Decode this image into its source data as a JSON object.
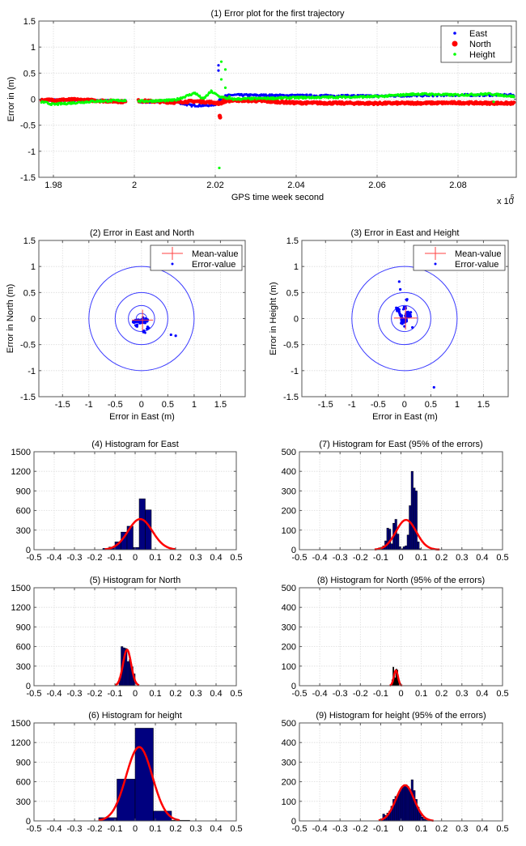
{
  "chart_data": [
    {
      "id": "p1",
      "type": "scatter",
      "title": "(1) Error plot for the first trajectory",
      "xlabel": "GPS time week second",
      "ylabel": "Error in (m)",
      "x_multiplier_label": "x 10",
      "x_multiplier_exp": "5",
      "xlim": [
        1.9764,
        2.0944
      ],
      "ylim": [
        -1.5,
        1.5
      ],
      "xticks": [
        1.98,
        2,
        2.02,
        2.04,
        2.06,
        2.08
      ],
      "xtick_labels": [
        "1.98",
        "2",
        "2.02",
        "2.04",
        "2.06",
        "2.08"
      ],
      "yticks": [
        -1.5,
        -1,
        -0.5,
        0,
        0.5,
        1,
        1.5
      ],
      "ytick_labels": [
        "-1.5",
        "-1",
        "-0.5",
        "0",
        "0.5",
        "1",
        "1.5"
      ],
      "grid": true,
      "legend_position": "top-right",
      "series": [
        {
          "name": "East",
          "color": "#0000ff",
          "marker": "dot",
          "segments": [
            [
              1.977,
              -0.02
            ],
            [
              1.985,
              -0.02
            ],
            [
              1.998,
              -0.04
            ],
            [
              2.001,
              -0.05
            ],
            [
              2.01,
              -0.05
            ],
            [
              2.014,
              -0.12
            ],
            [
              2.018,
              -0.12
            ],
            [
              2.02,
              -0.1
            ],
            [
              2.022,
              0.05
            ],
            [
              2.024,
              0.08
            ],
            [
              2.04,
              0.07
            ],
            [
              2.06,
              0.06
            ],
            [
              2.08,
              0.08
            ],
            [
              2.094,
              0.08
            ]
          ],
          "outliers": [
            [
              2.0208,
              0.65
            ],
            [
              2.0208,
              0.55
            ]
          ]
        },
        {
          "name": "North",
          "color": "#ff0000",
          "marker": "circle",
          "segments": [
            [
              1.977,
              -0.02
            ],
            [
              1.985,
              -0.01
            ],
            [
              1.998,
              -0.05
            ],
            [
              2.001,
              -0.03
            ],
            [
              2.01,
              -0.06
            ],
            [
              2.015,
              -0.04
            ],
            [
              2.019,
              -0.06
            ],
            [
              2.021,
              -0.08
            ],
            [
              2.024,
              -0.02
            ],
            [
              2.03,
              -0.03
            ],
            [
              2.04,
              -0.07
            ],
            [
              2.06,
              -0.08
            ],
            [
              2.08,
              -0.07
            ],
            [
              2.094,
              -0.08
            ]
          ],
          "outliers": [
            [
              2.0211,
              -0.32
            ],
            [
              2.0212,
              -0.35
            ],
            [
              2.0222,
              -0.01
            ],
            [
              2.0225,
              0.02
            ]
          ]
        },
        {
          "name": "Height",
          "color": "#00ff00",
          "marker": "dot",
          "segments": [
            [
              1.977,
              -0.05
            ],
            [
              1.98,
              -0.1
            ],
            [
              1.99,
              -0.04
            ],
            [
              1.998,
              -0.02
            ],
            [
              2.001,
              -0.04
            ],
            [
              2.01,
              -0.02
            ],
            [
              2.015,
              0.12
            ],
            [
              2.017,
              0.0
            ],
            [
              2.019,
              0.15
            ],
            [
              2.021,
              0.05
            ],
            [
              2.024,
              0.0
            ],
            [
              2.04,
              0.03
            ],
            [
              2.06,
              0.05
            ],
            [
              2.07,
              0.1
            ],
            [
              2.08,
              0.08
            ],
            [
              2.088,
              0.1
            ],
            [
              2.094,
              0.05
            ]
          ],
          "outliers": [
            [
              2.0215,
              0.72
            ],
            [
              2.0225,
              0.57
            ],
            [
              2.0215,
              0.38
            ],
            [
              2.0225,
              0.22
            ],
            [
              2.021,
              -1.32
            ],
            [
              2.0235,
              0.05
            ],
            [
              2.0888,
              -0.05
            ]
          ]
        }
      ]
    },
    {
      "id": "p2",
      "type": "scatter",
      "title": "(2) Error in East and North",
      "xlabel": "Error in East (m)",
      "ylabel": "Error in North (m)",
      "xlim": [
        -1.95,
        1.97
      ],
      "ylim": [
        -1.5,
        1.5
      ],
      "xticks": [
        -1.5,
        -1,
        -0.5,
        0,
        0.5,
        1,
        1.5
      ],
      "xtick_labels": [
        "-1.5",
        "-1",
        "-0.5",
        "0",
        "0.5",
        "1",
        "1.5"
      ],
      "yticks": [
        -1.5,
        -1,
        -0.5,
        0,
        0.5,
        1,
        1.5
      ],
      "ytick_labels": [
        "-1.5",
        "-1",
        "-0.5",
        "0",
        "0.5",
        "1",
        "1.5"
      ],
      "grid": true,
      "legend_position": "top-right",
      "legend": [
        "Mean-value",
        "Error-value"
      ],
      "circle_radii": [
        0.1,
        0.25,
        0.5,
        1.0
      ],
      "mean": [
        0.02,
        -0.03
      ],
      "mean_cross_halfsize": 0.2,
      "points": [
        [
          -0.15,
          -0.07
        ],
        [
          -0.12,
          -0.06
        ],
        [
          -0.1,
          -0.05
        ],
        [
          -0.08,
          -0.04
        ],
        [
          -0.06,
          -0.05
        ],
        [
          -0.04,
          -0.03
        ],
        [
          -0.02,
          -0.04
        ],
        [
          0,
          -0.02
        ],
        [
          0.02,
          -0.05
        ],
        [
          0.04,
          -0.03
        ],
        [
          0.06,
          -0.04
        ],
        [
          0.08,
          -0.02
        ],
        [
          0.1,
          -0.04
        ],
        [
          0.05,
          -0.07
        ],
        [
          -0.03,
          -0.07
        ],
        [
          -0.1,
          -0.14
        ],
        [
          0.05,
          -0.25
        ],
        [
          0.12,
          -0.18
        ],
        [
          0.03,
          0.02
        ],
        [
          0.56,
          -0.31
        ],
        [
          0.65,
          -0.33
        ]
      ]
    },
    {
      "id": "p3",
      "type": "scatter",
      "title": "(3) Error in East and Height",
      "xlabel": "Error in East (m)",
      "ylabel": "Error in Height (m)",
      "xlim": [
        -1.95,
        1.97
      ],
      "ylim": [
        -1.5,
        1.5
      ],
      "xticks": [
        -1.5,
        -1,
        -0.5,
        0,
        0.5,
        1,
        1.5
      ],
      "xtick_labels": [
        "-1.5",
        "-1",
        "-0.5",
        "0",
        "0.5",
        "1",
        "1.5"
      ],
      "yticks": [
        -1.5,
        -1,
        -0.5,
        0,
        0.5,
        1,
        1.5
      ],
      "ytick_labels": [
        "-1.5",
        "-1",
        "-0.5",
        "0",
        "0.5",
        "1",
        "1.5"
      ],
      "grid": true,
      "legend_position": "top-right",
      "legend": [
        "Mean-value",
        "Error-value"
      ],
      "circle_radii": [
        0.25,
        0.5,
        1.0
      ],
      "mean": [
        0.02,
        0.01
      ],
      "mean_cross_halfsize": 0.22,
      "points": [
        [
          -0.14,
          0.2
        ],
        [
          -0.12,
          0.16
        ],
        [
          -0.1,
          0.12
        ],
        [
          -0.08,
          0.08
        ],
        [
          -0.06,
          0.04
        ],
        [
          -0.04,
          0.0
        ],
        [
          -0.02,
          -0.04
        ],
        [
          0,
          -0.06
        ],
        [
          0.02,
          -0.02
        ],
        [
          0.03,
          0.04
        ],
        [
          0.05,
          0.08
        ],
        [
          0.06,
          0.12
        ],
        [
          0.08,
          0.1
        ],
        [
          0.1,
          0.05
        ],
        [
          0.04,
          -0.05
        ],
        [
          -0.05,
          -0.08
        ],
        [
          0,
          0.2
        ],
        [
          0.05,
          0.37
        ],
        [
          0.12,
          0.12
        ],
        [
          0.15,
          -0.17
        ],
        [
          0.0,
          -0.15
        ],
        [
          -0.1,
          0.71
        ],
        [
          -0.08,
          0.56
        ],
        [
          0.56,
          -1.32
        ]
      ]
    },
    {
      "id": "h4",
      "type": "bar",
      "title": "(4) Histogram for East",
      "xlim": [
        -0.5,
        0.5
      ],
      "ylim": [
        0,
        1500
      ],
      "xticks": [
        -0.5,
        -0.4,
        -0.3,
        -0.2,
        -0.1,
        0,
        0.1,
        0.2,
        0.3,
        0.4,
        0.5
      ],
      "xtick_labels": [
        "-0.5",
        "-0.4",
        "-0.3",
        "-0.2",
        "-0.1",
        "0",
        "0.1",
        "0.2",
        "0.3",
        "0.4",
        "0.5"
      ],
      "yticks": [
        0,
        300,
        600,
        900,
        1200,
        1500
      ],
      "ytick_labels": [
        "0",
        "300",
        "600",
        "900",
        "1200",
        "1500"
      ],
      "grid": true,
      "bin_edges": [
        -0.16,
        -0.13,
        -0.1,
        -0.07,
        -0.04,
        -0.01,
        0.02,
        0.05,
        0.08,
        0.11,
        0.14
      ],
      "values": [
        20,
        40,
        120,
        270,
        360,
        35,
        780,
        610,
        5,
        3
      ],
      "fit": {
        "mean": 0.025,
        "peak": 470,
        "sigma": 0.06,
        "range": [
          -0.15,
          0.2
        ]
      }
    },
    {
      "id": "h7",
      "type": "bar",
      "title": "(7) Histogram for East (95% of the errors)",
      "xlim": [
        -0.5,
        0.5
      ],
      "ylim": [
        0,
        500
      ],
      "xticks": [
        -0.5,
        -0.4,
        -0.3,
        -0.2,
        -0.1,
        0,
        0.1,
        0.2,
        0.3,
        0.4,
        0.5
      ],
      "xtick_labels": [
        "-0.5",
        "-0.4",
        "-0.3",
        "-0.2",
        "-0.1",
        "0",
        "0.1",
        "0.2",
        "0.3",
        "0.4",
        "0.5"
      ],
      "yticks": [
        0,
        100,
        200,
        300,
        400,
        500
      ],
      "ytick_labels": [
        "0",
        "100",
        "200",
        "300",
        "400",
        "500"
      ],
      "grid": true,
      "bin_edges": [
        -0.12,
        -0.11,
        -0.1,
        -0.09,
        -0.08,
        -0.07,
        -0.06,
        -0.05,
        -0.04,
        -0.03,
        -0.02,
        -0.01,
        0,
        0.01,
        0.02,
        0.03,
        0.04,
        0.05,
        0.06,
        0.07,
        0.08,
        0.09,
        0.1
      ],
      "values": [
        3,
        10,
        12,
        20,
        45,
        110,
        105,
        30,
        135,
        155,
        80,
        15,
        5,
        15,
        20,
        75,
        225,
        400,
        315,
        300,
        40,
        5
      ],
      "fit": {
        "mean": 0.025,
        "peak": 152,
        "sigma": 0.05,
        "range": [
          -0.13,
          0.19
        ]
      }
    },
    {
      "id": "h5",
      "type": "bar",
      "title": "(5) Histogram for North",
      "xlim": [
        -0.5,
        0.5
      ],
      "ylim": [
        0,
        1500
      ],
      "xticks": [
        -0.5,
        -0.4,
        -0.3,
        -0.2,
        -0.1,
        0,
        0.1,
        0.2,
        0.3,
        0.4,
        0.5
      ],
      "xtick_labels": [
        "-0.5",
        "-0.4",
        "-0.3",
        "-0.2",
        "-0.1",
        "0",
        "0.1",
        "0.2",
        "0.3",
        "0.4",
        "0.5"
      ],
      "yticks": [
        0,
        300,
        600,
        900,
        1200,
        1500
      ],
      "ytick_labels": [
        "0",
        "300",
        "600",
        "900",
        "1200",
        "1500"
      ],
      "grid": true,
      "bin_edges": [
        -0.08,
        -0.07,
        -0.06,
        -0.05,
        -0.04,
        -0.03,
        -0.02,
        -0.01,
        0.0
      ],
      "values": [
        120,
        600,
        580,
        570,
        370,
        400,
        290,
        180
      ],
      "fit": {
        "mean": -0.04,
        "peak": 550,
        "sigma": 0.02,
        "range": [
          -0.1,
          0.02
        ]
      }
    },
    {
      "id": "h8",
      "type": "bar",
      "title": "(8) Histogram for North (95% of the errors)",
      "xlim": [
        -0.5,
        0.5
      ],
      "ylim": [
        0,
        500
      ],
      "xticks": [
        -0.5,
        -0.4,
        -0.3,
        -0.2,
        -0.1,
        0,
        0.1,
        0.2,
        0.3,
        0.4,
        0.5
      ],
      "xtick_labels": [
        "-0.5",
        "-0.4",
        "-0.3",
        "-0.2",
        "-0.1",
        "0",
        "0.1",
        "0.2",
        "0.3",
        "0.4",
        "0.5"
      ],
      "yticks": [
        0,
        100,
        200,
        300,
        400,
        500
      ],
      "ytick_labels": [
        "0",
        "100",
        "200",
        "300",
        "400",
        "500"
      ],
      "grid": true,
      "bin_edges": [
        -0.045,
        -0.04,
        -0.035,
        -0.03,
        -0.025,
        -0.02,
        -0.015,
        -0.01
      ],
      "values": [
        30,
        95,
        60,
        40,
        85,
        80,
        40
      ],
      "fit": {
        "mean": -0.025,
        "peak": 78,
        "sigma": 0.01,
        "range": [
          -0.055,
          0.005
        ]
      },
      "bar_color": "#000000"
    },
    {
      "id": "h6",
      "type": "bar",
      "title": "(6) Histogram for height",
      "xlim": [
        -0.5,
        0.5
      ],
      "ylim": [
        0,
        1500
      ],
      "xticks": [
        -0.5,
        -0.4,
        -0.3,
        -0.2,
        -0.1,
        0,
        0.1,
        0.2,
        0.3,
        0.4,
        0.5
      ],
      "xtick_labels": [
        "-0.5",
        "-0.4",
        "-0.3",
        "-0.2",
        "-0.1",
        "0",
        "0.1",
        "0.2",
        "0.3",
        "0.4",
        "0.5"
      ],
      "yticks": [
        0,
        300,
        600,
        900,
        1200,
        1500
      ],
      "ytick_labels": [
        "0",
        "300",
        "600",
        "900",
        "1200",
        "1500"
      ],
      "grid": true,
      "bin_edges": [
        -0.18,
        -0.09,
        0.0,
        0.09,
        0.18,
        0.27,
        0.36,
        0.45
      ],
      "values": [
        50,
        640,
        1420,
        150,
        10,
        0,
        3
      ],
      "fit": {
        "mean": 0.02,
        "peak": 1130,
        "sigma": 0.065,
        "range": [
          -0.18,
          0.22
        ]
      }
    },
    {
      "id": "h9",
      "type": "bar",
      "title": "(9) Histogram for height (95% of the errors)",
      "xlim": [
        -0.5,
        0.5
      ],
      "ylim": [
        0,
        500
      ],
      "xticks": [
        -0.5,
        -0.4,
        -0.3,
        -0.2,
        -0.1,
        0,
        0.1,
        0.2,
        0.3,
        0.4,
        0.5
      ],
      "xtick_labels": [
        "-0.5",
        "-0.4",
        "-0.3",
        "-0.2",
        "-0.1",
        "0",
        "0.1",
        "0.2",
        "0.3",
        "0.4",
        "0.5"
      ],
      "yticks": [
        0,
        100,
        200,
        300,
        400,
        500
      ],
      "ytick_labels": [
        "0",
        "100",
        "200",
        "300",
        "400",
        "500"
      ],
      "grid": true,
      "bin_edges": [
        -0.1,
        -0.09,
        -0.08,
        -0.07,
        -0.06,
        -0.05,
        -0.04,
        -0.03,
        -0.02,
        -0.01,
        0,
        0.01,
        0.02,
        0.03,
        0.04,
        0.05,
        0.06,
        0.07,
        0.08,
        0.09,
        0.1,
        0.11,
        0.12,
        0.13
      ],
      "values": [
        5,
        35,
        28,
        40,
        50,
        75,
        110,
        125,
        130,
        150,
        170,
        180,
        185,
        175,
        160,
        210,
        155,
        110,
        70,
        40,
        20,
        10,
        5
      ],
      "fit": {
        "mean": 0.02,
        "peak": 182,
        "sigma": 0.045,
        "range": [
          -0.11,
          0.16
        ]
      }
    }
  ],
  "colors": {
    "east": "#0000ff",
    "north": "#ff0000",
    "height": "#00ff00",
    "hist_bar": "#00007f",
    "fit_curve": "#ff0000",
    "circle": "#3b3bff",
    "mean_cross": "#ff4040"
  }
}
